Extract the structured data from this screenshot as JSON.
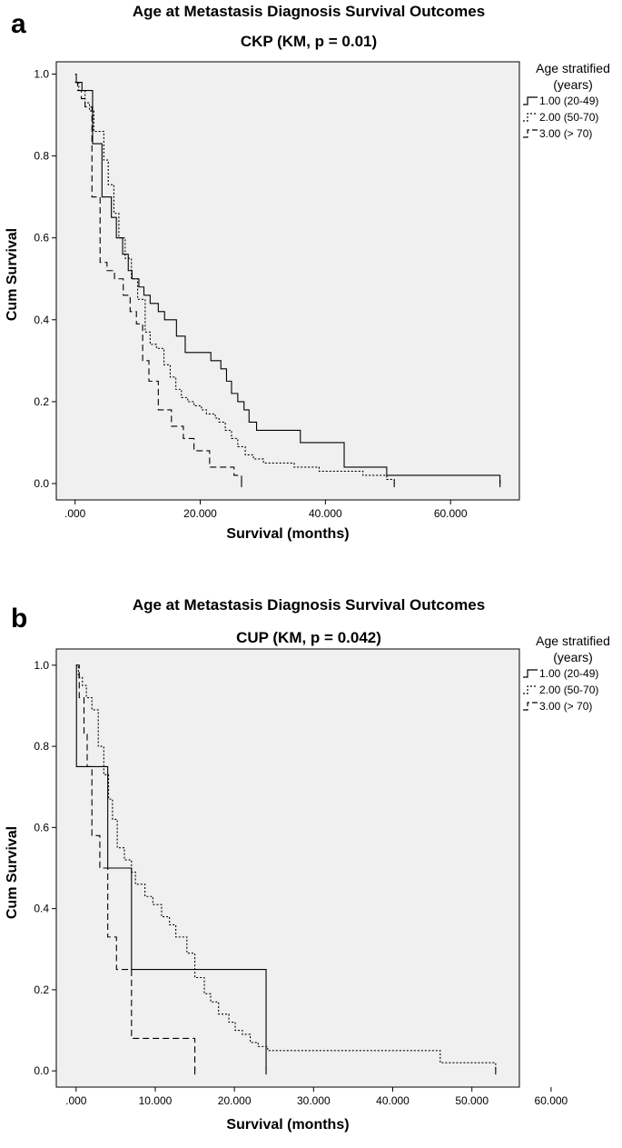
{
  "chart_data": [
    {
      "type": "line",
      "panel_label": "a",
      "title": "Age at Metastasis Diagnosis Survival Outcomes",
      "subtitle": "CKP (KM, p = 0.01)",
      "xlabel": "Survival (months)",
      "ylabel": "Cum Survival",
      "xlim": [
        -3,
        71
      ],
      "ylim": [
        -0.04,
        1.03
      ],
      "xticks": [
        0,
        20,
        40,
        60
      ],
      "xtick_labels": [
        ".000",
        "20.000",
        "40.000",
        "60.000"
      ],
      "yticks": [
        0.0,
        0.2,
        0.4,
        0.6,
        0.8,
        1.0
      ],
      "ytick_labels": [
        "0.0",
        "0.2",
        "0.4",
        "0.6",
        "0.8",
        "1.0"
      ],
      "legend_title": "Age stratified (years)",
      "legend_title_lines": [
        "Age stratified",
        "(years)"
      ],
      "series": [
        {
          "name": "1.00 (20-49)",
          "style": "solid",
          "x": [
            0,
            0.2,
            0.7,
            1.1,
            2.8,
            4.3,
            5.8,
            6.6,
            7.6,
            8.5,
            9.1,
            10.2,
            11.0,
            12.0,
            13.3,
            14.3,
            16.2,
            17.6,
            21.7,
            23.3,
            24.2,
            25.0,
            26.0,
            27.0,
            27.8,
            29.0,
            36.0,
            43.0,
            49.8,
            67.9
          ],
          "y": [
            1.0,
            0.98,
            0.98,
            0.96,
            0.83,
            0.7,
            0.65,
            0.6,
            0.56,
            0.52,
            0.5,
            0.48,
            0.46,
            0.44,
            0.42,
            0.4,
            0.36,
            0.32,
            0.3,
            0.28,
            0.25,
            0.22,
            0.2,
            0.18,
            0.15,
            0.13,
            0.1,
            0.04,
            0.02,
            0.0
          ]
        },
        {
          "name": "2.00 (50-70)",
          "style": "dotted",
          "x": [
            0,
            0.6,
            1.6,
            2.3,
            3.0,
            4.6,
            5.3,
            6.2,
            7.0,
            8.0,
            9.0,
            10.0,
            11.2,
            12.0,
            13.0,
            14.2,
            15.2,
            16.1,
            17.0,
            18.0,
            19.0,
            20.2,
            21.0,
            22.4,
            23.0,
            24.0,
            25.0,
            26.0,
            27.2,
            28.5,
            30.1,
            35.0,
            39.0,
            46.0,
            49.8,
            51.0
          ],
          "y": [
            0.98,
            0.96,
            0.93,
            0.91,
            0.86,
            0.79,
            0.73,
            0.66,
            0.6,
            0.55,
            0.5,
            0.45,
            0.37,
            0.34,
            0.33,
            0.29,
            0.26,
            0.23,
            0.21,
            0.2,
            0.19,
            0.18,
            0.17,
            0.16,
            0.15,
            0.13,
            0.11,
            0.09,
            0.07,
            0.06,
            0.05,
            0.04,
            0.03,
            0.02,
            0.01,
            0.0
          ]
        },
        {
          "name": "3.00 (> 70)",
          "style": "dashed",
          "x": [
            0,
            0.4,
            1.0,
            1.6,
            2.7,
            4.0,
            5.1,
            6.3,
            7.7,
            8.8,
            9.8,
            10.8,
            11.8,
            13.3,
            15.4,
            17.3,
            19.0,
            21.5,
            25.4,
            26.6
          ],
          "y": [
            0.98,
            0.96,
            0.94,
            0.92,
            0.7,
            0.54,
            0.52,
            0.5,
            0.46,
            0.42,
            0.39,
            0.3,
            0.25,
            0.18,
            0.14,
            0.11,
            0.08,
            0.04,
            0.02,
            0.0
          ]
        }
      ]
    },
    {
      "type": "line",
      "panel_label": "b",
      "title": "Age at Metastasis Diagnosis Survival Outcomes",
      "subtitle": "CUP (KM, p = 0.042)",
      "xlabel": "Survival (months)",
      "ylabel": "Cum Survival",
      "xlim": [
        -2.5,
        56
      ],
      "ylim": [
        -0.04,
        1.04
      ],
      "xticks": [
        0,
        10,
        20,
        30,
        40,
        50,
        60
      ],
      "xtick_labels": [
        ".000",
        "10.000",
        "20.000",
        "30.000",
        "40.000",
        "50.000",
        "60.000"
      ],
      "yticks": [
        0.0,
        0.2,
        0.4,
        0.6,
        0.8,
        1.0
      ],
      "ytick_labels": [
        "0.0",
        "0.2",
        "0.4",
        "0.6",
        "0.8",
        "1.0"
      ],
      "legend_title": "Age stratified (years)",
      "legend_title_lines": [
        "Age stratified",
        "(years)"
      ],
      "series": [
        {
          "name": "1.00 (20-49)",
          "style": "solid",
          "x": [
            0,
            0.05,
            3.0,
            4.0,
            7.0,
            24.0
          ],
          "y": [
            1.0,
            0.75,
            0.75,
            0.5,
            0.25,
            0.0
          ]
        },
        {
          "name": "2.00 (50-70)",
          "style": "dotted",
          "x": [
            0,
            0.3,
            0.8,
            1.3,
            2.0,
            2.8,
            3.5,
            4.1,
            4.6,
            5.2,
            6.1,
            7.0,
            7.5,
            8.7,
            9.7,
            10.8,
            11.8,
            12.6,
            14.0,
            15.0,
            16.2,
            17.0,
            18.0,
            19.3,
            20.1,
            21.0,
            22.0,
            23.0,
            24.2,
            46.0,
            53.0
          ],
          "y": [
            1.0,
            0.97,
            0.95,
            0.92,
            0.89,
            0.8,
            0.73,
            0.67,
            0.62,
            0.55,
            0.52,
            0.49,
            0.46,
            0.43,
            0.41,
            0.38,
            0.36,
            0.33,
            0.29,
            0.23,
            0.19,
            0.17,
            0.14,
            0.12,
            0.1,
            0.09,
            0.07,
            0.06,
            0.05,
            0.02,
            0.0
          ]
        },
        {
          "name": "3.00 (> 70)",
          "style": "dashed",
          "x": [
            0,
            0.4,
            1.0,
            1.4,
            2.0,
            3.0,
            4.0,
            5.1,
            7.0,
            15.0
          ],
          "y": [
            1.0,
            0.92,
            0.83,
            0.75,
            0.58,
            0.5,
            0.33,
            0.25,
            0.08,
            0.0
          ]
        }
      ]
    }
  ]
}
